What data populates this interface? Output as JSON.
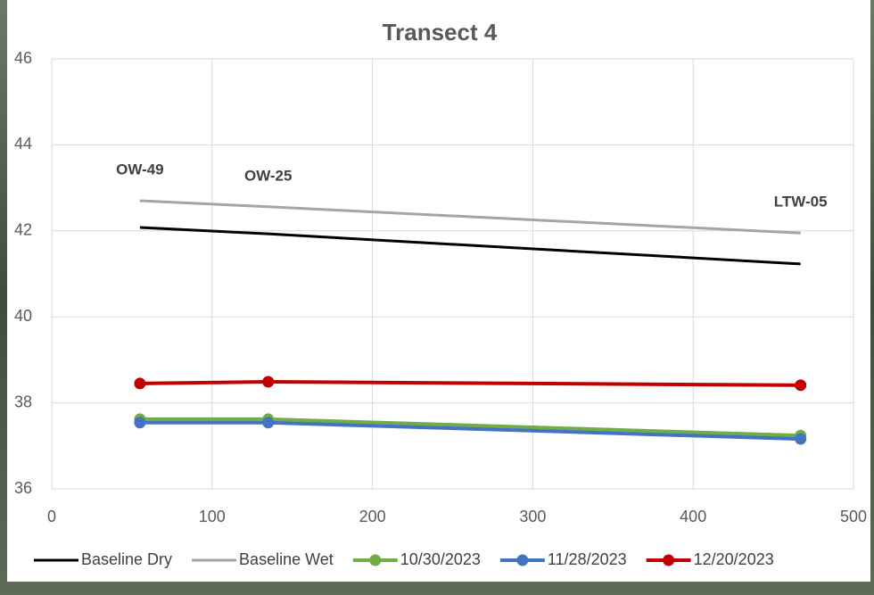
{
  "chart_data": {
    "type": "line",
    "title": "Transect 4",
    "x": [
      55,
      135,
      467
    ],
    "point_labels": [
      "OW-49",
      "OW-25",
      "LTW-05"
    ],
    "series": [
      {
        "name": "Baseline Dry",
        "color": "#000000",
        "markers": false,
        "values": [
          42.08,
          41.93,
          41.23
        ]
      },
      {
        "name": "Baseline Wet",
        "color": "#a5a5a5",
        "markers": false,
        "values": [
          42.7,
          42.56,
          41.95
        ]
      },
      {
        "name": "10/30/2023",
        "color": "#70ad47",
        "markers": true,
        "values": [
          37.62,
          37.62,
          37.24
        ]
      },
      {
        "name": "11/28/2023",
        "color": "#4472c4",
        "markers": true,
        "values": [
          37.54,
          37.54,
          37.16
        ]
      },
      {
        "name": "12/20/2023",
        "color": "#c00000",
        "markers": true,
        "values": [
          38.45,
          38.49,
          38.41
        ]
      }
    ],
    "xlim": [
      0,
      500
    ],
    "xticks": [
      0,
      100,
      200,
      300,
      400,
      500
    ],
    "ylim": [
      36,
      46
    ],
    "yticks": [
      36,
      38,
      40,
      42,
      44,
      46
    ],
    "grid": true,
    "legend": "bottom"
  }
}
